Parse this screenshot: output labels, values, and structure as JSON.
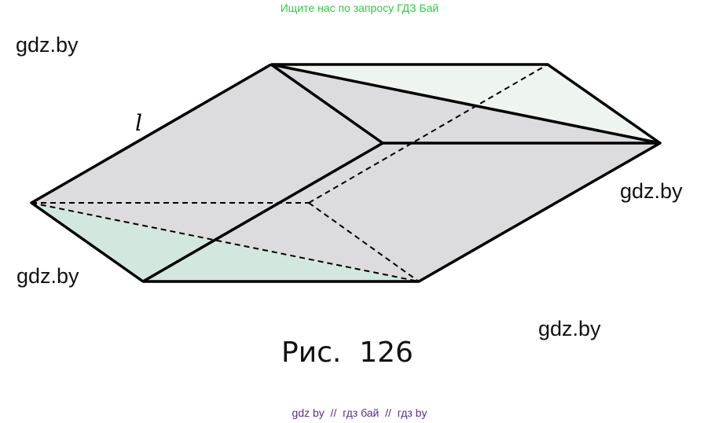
{
  "header": {
    "text": "Ищите нас по запросу ГДЗ Бай"
  },
  "watermarks": [
    "gdz.by",
    "gdz.by",
    "gdz.by",
    "gdz.by"
  ],
  "figure": {
    "edge_label": "l",
    "caption": "Рис.  126",
    "colors": {
      "face_gray": "#dcdcde",
      "green_bottom": "#d2e8dc",
      "green_top": "#eef5f0",
      "stroke": "#000000"
    }
  },
  "footer": {
    "text": "gdz by  //  гдз бай  //  гдз by"
  }
}
